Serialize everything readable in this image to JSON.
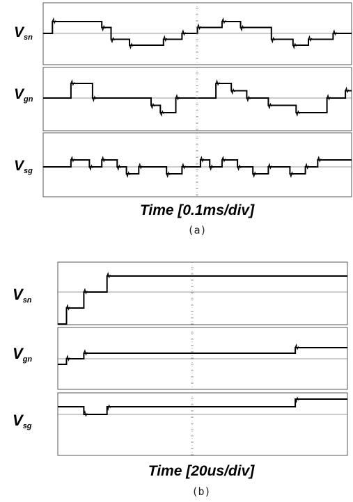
{
  "panels": [
    {
      "caption": "(a)",
      "time_label": "Time [0.1ms/div]",
      "traces": [
        {
          "label": "V",
          "sub": "sn"
        },
        {
          "label": "V",
          "sub": "gn"
        },
        {
          "label": "V",
          "sub": "sg"
        }
      ]
    },
    {
      "caption": "(b)",
      "time_label": "Time [20us/div]",
      "traces": [
        {
          "label": "V",
          "sub": "sn"
        },
        {
          "label": "V",
          "sub": "gn"
        },
        {
          "label": "V",
          "sub": "sg"
        }
      ]
    }
  ],
  "chart_data": [
    {
      "type": "line",
      "title": "",
      "xlabel": "Time [0.1ms/div]",
      "ylabel": "",
      "series": [
        {
          "name": "Vsn",
          "x": [
            0,
            0.3,
            0.3,
            1.9,
            1.9,
            2.2,
            2.2,
            2.8,
            2.8,
            3.9,
            3.9,
            4.5,
            4.5,
            5.0,
            5.0,
            5.8,
            5.8,
            6.4,
            6.4,
            7.4,
            7.4,
            8.1,
            8.1,
            8.6,
            8.6,
            9.4,
            9.4,
            10
          ],
          "y": [
            0,
            0,
            2,
            2,
            1,
            1,
            -1,
            -1,
            -2,
            -2,
            -1,
            -1,
            0,
            0,
            1,
            1,
            2,
            2,
            1,
            1,
            -1,
            -1,
            -2,
            -2,
            -1,
            -1,
            0,
            0
          ]
        },
        {
          "name": "Vgn",
          "x": [
            0,
            0.9,
            0.9,
            1.6,
            1.6,
            3.5,
            3.5,
            3.8,
            3.8,
            4.3,
            4.3,
            5.6,
            5.6,
            6.1,
            6.1,
            6.6,
            6.6,
            7.3,
            7.3,
            8.2,
            8.2,
            9.2,
            9.2,
            9.8,
            9.8,
            10
          ],
          "y": [
            0,
            0,
            2,
            2,
            0,
            0,
            -1,
            -1,
            -2,
            -2,
            0,
            0,
            2,
            2,
            1,
            1,
            0,
            0,
            -1,
            -1,
            -2,
            -2,
            0,
            0,
            1,
            1
          ]
        },
        {
          "name": "Vsg",
          "x": [
            0,
            0.9,
            0.9,
            1.5,
            1.5,
            1.9,
            1.9,
            2.4,
            2.4,
            2.7,
            2.7,
            3.1,
            3.1,
            4.0,
            4.0,
            4.5,
            4.5,
            5.1,
            5.1,
            5.4,
            5.4,
            5.8,
            5.8,
            6.3,
            6.3,
            6.8,
            6.8,
            7.3,
            7.3,
            8.0,
            8.0,
            8.5,
            8.5,
            8.9,
            8.9,
            10
          ],
          "y": [
            0,
            0,
            1,
            1,
            0,
            0,
            1,
            1,
            0,
            0,
            -1,
            -1,
            0,
            0,
            -1,
            -1,
            0,
            0,
            1,
            1,
            0,
            0,
            1,
            1,
            0,
            0,
            -1,
            -1,
            0,
            0,
            -1,
            -1,
            0,
            0,
            1,
            1
          ]
        }
      ]
    },
    {
      "type": "line",
      "title": "",
      "xlabel": "Time [20us/div]",
      "ylabel": "",
      "series": [
        {
          "name": "Vsn",
          "x": [
            0,
            0.3,
            0.3,
            0.9,
            0.9,
            1.7,
            1.7,
            8.2,
            8.2,
            10
          ],
          "y": [
            -2,
            -2,
            -1,
            -1,
            0,
            0,
            1,
            1,
            1,
            1
          ]
        },
        {
          "name": "Vgn",
          "x": [
            0,
            0.3,
            0.3,
            0.9,
            0.9,
            1.7,
            1.7,
            8.2,
            8.2,
            10
          ],
          "y": [
            -1,
            -1,
            0,
            0,
            1,
            1,
            1,
            1,
            2,
            2
          ]
        },
        {
          "name": "Vsg",
          "x": [
            0,
            0.9,
            0.9,
            1.7,
            1.7,
            8.2,
            8.2,
            10
          ],
          "y": [
            -1,
            -1,
            0,
            0,
            -1,
            -1,
            -2,
            -2
          ]
        }
      ]
    }
  ]
}
